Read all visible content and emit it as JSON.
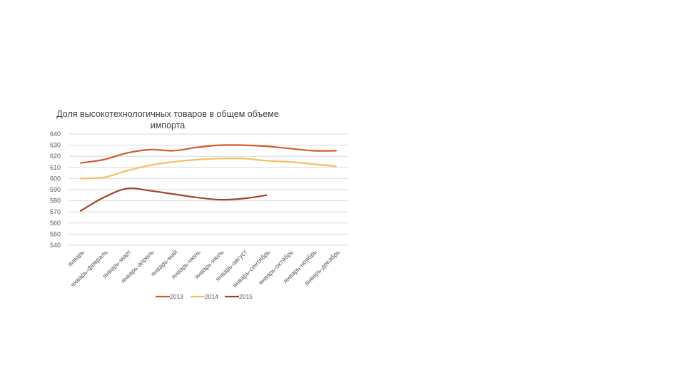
{
  "chart_data": {
    "type": "line",
    "title": "Доля высокотехнологичных товаров в общем объеме импорта",
    "xlabel": "",
    "ylabel": "",
    "ylim": [
      540,
      640
    ],
    "y_ticks": [
      540,
      550,
      560,
      570,
      580,
      590,
      600,
      610,
      620,
      630,
      640
    ],
    "grid": true,
    "legend_position": "bottom",
    "categories": [
      "январь",
      "январь-февраль",
      "январь-март",
      "январь-апрель",
      "январь-май",
      "январь-июнь",
      "январь-июль",
      "январь-август",
      "январь-сентябрь",
      "январь-октябрь",
      "январь-ноябрь",
      "январь-декабрь"
    ],
    "series": [
      {
        "name": "2013",
        "color": "#d55a2e",
        "values": [
          614,
          617,
          623,
          626,
          625,
          628,
          630,
          630,
          629,
          627,
          625,
          625
        ]
      },
      {
        "name": "2014",
        "color": "#f2c063",
        "values": [
          600,
          601,
          607,
          612,
          615,
          617,
          618,
          618,
          616,
          615,
          613,
          611
        ]
      },
      {
        "name": "2015",
        "color": "#a3442a",
        "values": [
          571,
          583,
          591,
          589,
          586,
          583,
          581,
          582,
          585,
          null,
          null,
          null
        ]
      }
    ]
  }
}
